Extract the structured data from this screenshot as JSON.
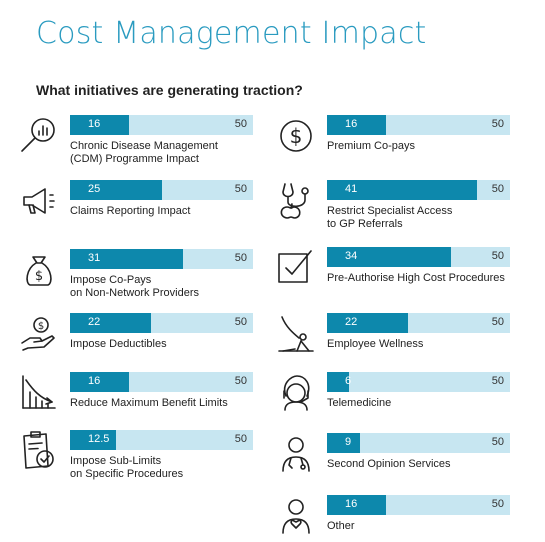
{
  "title": "Cost Management Impact",
  "subtitle": "What initiatives are generating traction?",
  "colors": {
    "title": "#2a9bc0",
    "fill": "#0d88ac",
    "track": "#c7e6f1"
  },
  "chart_data": {
    "type": "bar",
    "max_label": "50",
    "xlim": [
      0,
      50
    ],
    "items": [
      {
        "label": [
          "Chronic Disease Management",
          "(CDM) Programme Impact"
        ],
        "value": 16,
        "value_label": "16",
        "icon": "magnifier-chart-icon"
      },
      {
        "label": [
          "Claims Reporting Impact"
        ],
        "value": 25,
        "value_label": "25",
        "icon": "megaphone-icon"
      },
      {
        "label": [
          "Impose Co-Pays",
          "on Non-Network Providers"
        ],
        "value": 31,
        "value_label": "31",
        "icon": "money-bag-icon"
      },
      {
        "label": [
          "Impose Deductibles"
        ],
        "value": 22,
        "value_label": "22",
        "icon": "hand-coin-icon"
      },
      {
        "label": [
          "Reduce Maximum Benefit Limits"
        ],
        "value": 16,
        "value_label": "16",
        "icon": "declining-chart-icon"
      },
      {
        "label": [
          "Impose Sub-Limits",
          "on Specific Procedures"
        ],
        "value": 12.5,
        "value_label": "12.5",
        "icon": "clipboard-check-icon"
      },
      {
        "label": [
          "Premium Co-pays"
        ],
        "value": 16,
        "value_label": "16",
        "icon": "dollar-circle-icon"
      },
      {
        "label": [
          "Restrict Specialist Access",
          "to GP Referrals"
        ],
        "value": 41,
        "value_label": "41",
        "icon": "stethoscope-apple-icon"
      },
      {
        "label": [
          "Pre-Authorise High Cost Procedures"
        ],
        "value": 34,
        "value_label": "34",
        "icon": "checkbox-icon"
      },
      {
        "label": [
          "Employee Wellness"
        ],
        "value": 22,
        "value_label": "22",
        "icon": "yoga-icon"
      },
      {
        "label": [
          "Telemedicine"
        ],
        "value": 6,
        "value_label": "6",
        "icon": "headset-agent-icon"
      },
      {
        "label": [
          "Second Opinion Services"
        ],
        "value": 9,
        "value_label": "9",
        "icon": "doctor-icon"
      },
      {
        "label": [
          "Other"
        ],
        "value": 16,
        "value_label": "16",
        "icon": "person-heart-icon"
      }
    ]
  }
}
